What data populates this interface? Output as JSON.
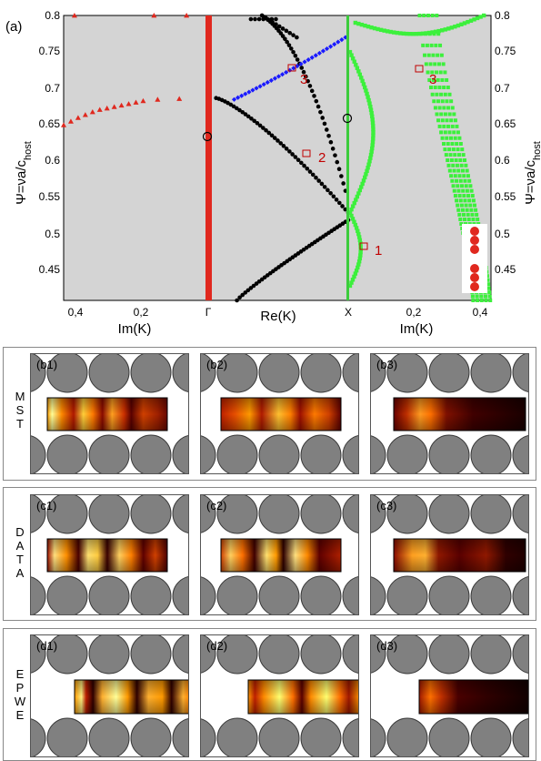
{
  "main_chart": {
    "panel_label": "(a)",
    "ylabel_left": "Ψ=νa/c_host",
    "ylabel_right": "Ψ=νa/c_host",
    "y_ticks": [
      "0.8",
      "0.75",
      "0.7",
      "0.65",
      "0.6",
      "0.55",
      "0.5",
      "0.45"
    ],
    "x_tick_left": [
      "0,4",
      "0,2",
      "Γ"
    ],
    "x_tick_right": [
      "X",
      "0,2",
      "0,4"
    ],
    "x_label_left": "Im(K)",
    "x_label_mid": "Re(K)",
    "x_label_right": "Im(K)",
    "mode_markers": [
      "1",
      "2",
      "3",
      "3"
    ],
    "colors": {
      "background": "#d4d4d4",
      "gamma_line": "#e0281e",
      "x_line": "#3ccc3c",
      "black_bands": "#000000",
      "blue_band": "#1a1aff",
      "green_bands": "#3cf03c",
      "red_triangles": "#e0281e",
      "marker": "#c00000"
    }
  },
  "chart_data": {
    "type": "scatter",
    "title": "",
    "xlabel": "Im(K) | Re(K) | Im(K)",
    "ylabel": "Ψ=νa/c_host",
    "ylim": [
      0.41,
      0.8
    ],
    "series": [
      {
        "color": "#e0281e",
        "x": [
          0.4,
          0.38,
          0.36,
          0.34,
          0.32,
          0.3,
          0.28,
          0.26,
          0.24,
          0.22,
          0.2,
          0.18,
          0.14,
          0.08
        ],
        "y": [
          0.65,
          0.655,
          0.66,
          0.664,
          0.668,
          0.671,
          0.673,
          0.675,
          0.677,
          0.679,
          0.681,
          0.683,
          0.685,
          0.686
        ]
      },
      {
        "color": "#000000",
        "x": [
          0.05,
          0.1,
          0.15,
          0.2,
          0.25,
          0.3,
          0.35,
          0.4,
          0.45,
          0.5
        ],
        "y": [
          0.41,
          0.418,
          0.43,
          0.445,
          0.46,
          0.475,
          0.49,
          0.5,
          0.51,
          0.52
        ]
      },
      {
        "color": "#000000",
        "x": [
          0.0,
          0.1,
          0.2,
          0.3,
          0.4,
          0.5,
          0.6,
          0.7,
          0.8
        ],
        "y": [
          0.685,
          0.676,
          0.66,
          0.645,
          0.625,
          0.605,
          0.585,
          0.56,
          0.53
        ]
      },
      {
        "color": "#1a1aff",
        "x": [
          0.0,
          0.1,
          0.2,
          0.3,
          0.4,
          0.5,
          0.6,
          0.7,
          0.8
        ],
        "y": [
          0.685,
          0.69,
          0.697,
          0.706,
          0.716,
          0.728,
          0.74,
          0.752,
          0.765
        ]
      },
      {
        "color": "#3cf03c",
        "x": [
          0.0,
          0.1,
          0.2,
          0.3
        ],
        "y": [
          0.43,
          0.48,
          0.55,
          0.8
        ]
      }
    ],
    "annotations": [
      "1",
      "2",
      "3",
      "3"
    ]
  },
  "rows": [
    {
      "label": "MST",
      "letters": [
        "M",
        "S",
        "T"
      ],
      "panels": [
        "(b1)",
        "(b2)",
        "(b3)"
      ]
    },
    {
      "label": "DATA",
      "letters": [
        "D",
        "A",
        "T",
        "A"
      ],
      "panels": [
        "(c1)",
        "(c2)",
        "(c3)"
      ]
    },
    {
      "label": "EPWE",
      "letters": [
        "E",
        "P",
        "W",
        "E"
      ],
      "panels": [
        "(d1)",
        "(d2)",
        "(d3)"
      ]
    }
  ]
}
